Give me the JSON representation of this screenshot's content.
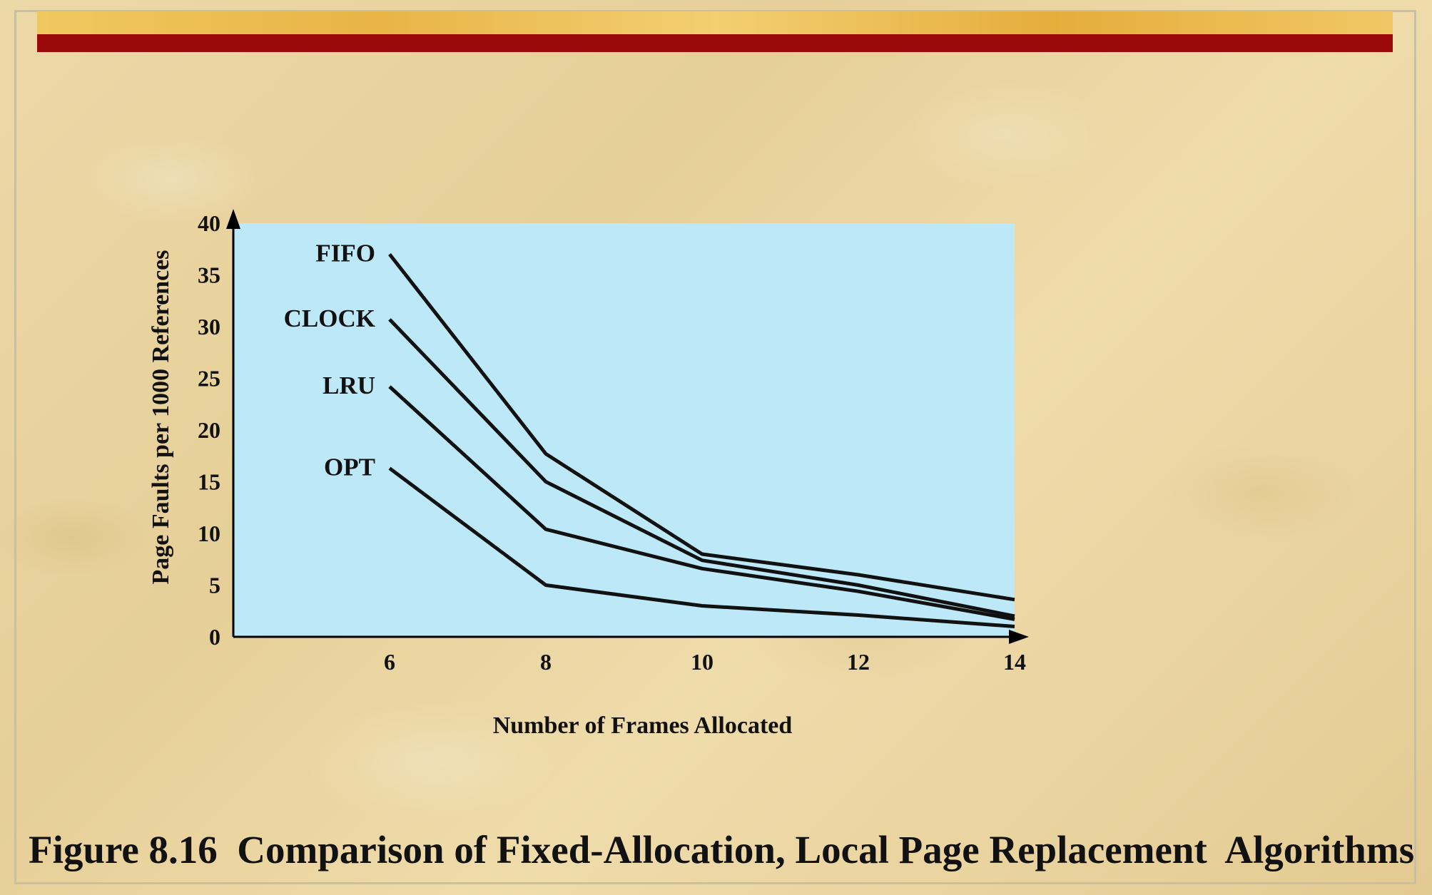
{
  "caption": "Figure 8.16  Comparison of Fixed-Allocation, Local Page Replacement  Algorithms",
  "colors": {
    "plot_background": "#bde8f8",
    "line": "#111111",
    "header_red": "#9b0a0a",
    "header_gold": "#e8b446"
  },
  "chart_data": {
    "type": "line",
    "title": "",
    "xlabel": "Number of Frames Allocated",
    "ylabel": "Page Faults per 1000 References",
    "x_ticks": [
      6,
      8,
      10,
      12,
      14
    ],
    "y_ticks": [
      0,
      5,
      10,
      15,
      20,
      25,
      30,
      35,
      40
    ],
    "xlim": [
      4,
      14
    ],
    "ylim": [
      0,
      40
    ],
    "grid": false,
    "legend": "none; series labeled at left end of each line",
    "series": [
      {
        "name": "FIFO",
        "x": [
          6,
          8,
          10,
          12,
          14
        ],
        "y": [
          37,
          17.7,
          8,
          6,
          3.6
        ]
      },
      {
        "name": "CLOCK",
        "x": [
          6,
          8,
          10,
          12,
          14
        ],
        "y": [
          30.7,
          15,
          7.4,
          5,
          2
        ]
      },
      {
        "name": "LRU",
        "x": [
          6,
          8,
          10,
          12,
          14
        ],
        "y": [
          24.2,
          10.4,
          6.6,
          4.4,
          1.7
        ]
      },
      {
        "name": "OPT",
        "x": [
          6,
          8,
          10,
          12,
          14
        ],
        "y": [
          16.3,
          5,
          3,
          2.1,
          1
        ]
      }
    ]
  }
}
